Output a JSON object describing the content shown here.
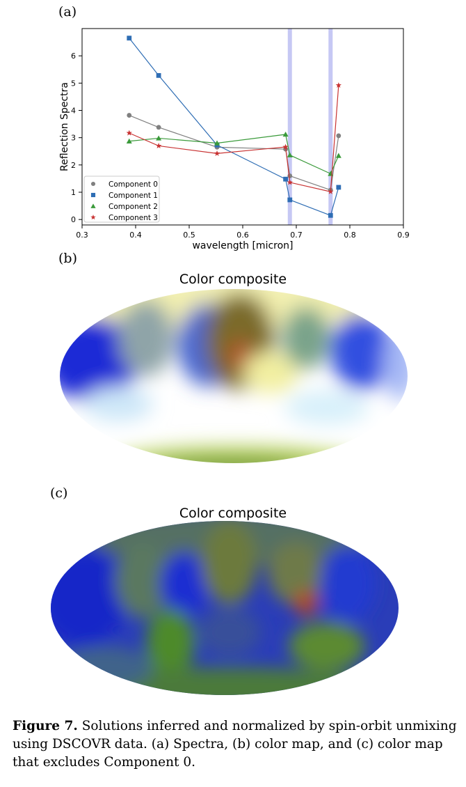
{
  "panels": {
    "a": "(a)",
    "b": "(b)",
    "c": "(c)"
  },
  "maps": {
    "b_title": "Color composite",
    "c_title": "Color composite"
  },
  "caption": {
    "label": "Figure 7.",
    "text": "Solutions inferred and normalized by spin-orbit unmixing using DSCOVR data. (a) Spectra, (b) color map, and (c) color map that excludes Component 0."
  },
  "chart_data": {
    "type": "line",
    "xlabel": "wavelength [micron]",
    "ylabel": "Reflection Spectra",
    "xlim": [
      0.3,
      0.9
    ],
    "ylim": [
      -0.2,
      7.0
    ],
    "xticks": [
      0.3,
      0.4,
      0.5,
      0.6,
      0.7,
      0.8,
      0.9
    ],
    "yticks": [
      0,
      1,
      2,
      3,
      4,
      5,
      6
    ],
    "xtick_labels": [
      "0.3",
      "0.4",
      "0.5",
      "0.6",
      "0.7",
      "0.8",
      "0.9"
    ],
    "ytick_labels": [
      "0",
      "1",
      "2",
      "3",
      "4",
      "5",
      "6"
    ],
    "grid": false,
    "legend_position": "lower-left",
    "vertical_bands": [
      0.688,
      0.764
    ],
    "x": [
      0.388,
      0.443,
      0.552,
      0.68,
      0.688,
      0.764,
      0.779
    ],
    "series": [
      {
        "name": "Component 0",
        "color": "#808080",
        "marker": "circle",
        "values": [
          3.82,
          3.38,
          2.65,
          2.58,
          1.6,
          1.08,
          3.07
        ]
      },
      {
        "name": "Component 1",
        "color": "#2e6db4",
        "marker": "square",
        "values": [
          6.65,
          5.28,
          2.73,
          1.48,
          0.72,
          0.15,
          1.18
        ]
      },
      {
        "name": "Component 2",
        "color": "#3a9a3a",
        "marker": "triangle",
        "values": [
          2.87,
          2.98,
          2.8,
          3.12,
          2.36,
          1.68,
          2.34
        ]
      },
      {
        "name": "Component 3",
        "color": "#c83232",
        "marker": "star",
        "values": [
          3.17,
          2.7,
          2.42,
          2.66,
          1.36,
          1.02,
          4.92
        ]
      }
    ]
  }
}
